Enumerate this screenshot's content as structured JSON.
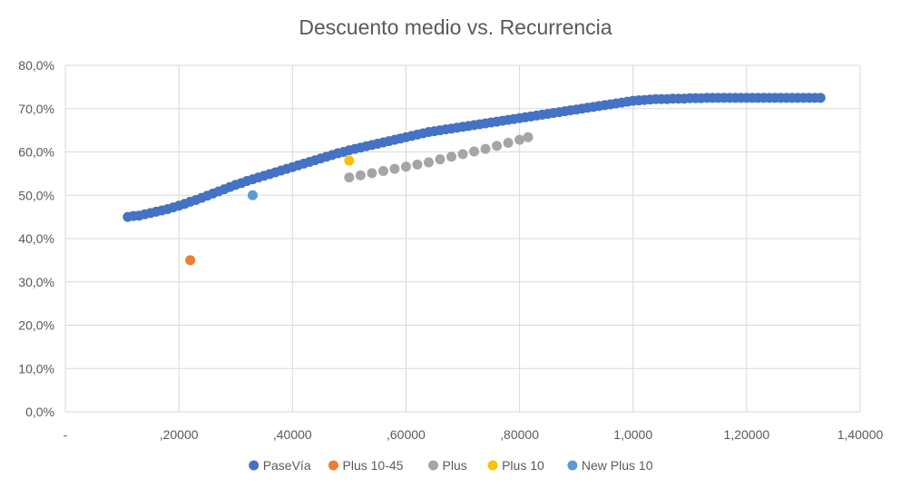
{
  "chart_data": {
    "type": "scatter",
    "title": "Descuento medio vs. Recurrencia",
    "xlabel": "",
    "ylabel": "",
    "xlim": [
      0,
      1.4
    ],
    "ylim": [
      0,
      0.8
    ],
    "x_ticks": [
      {
        "value": 0,
        "label": "-"
      },
      {
        "value": 0.2,
        "label": ",20000"
      },
      {
        "value": 0.4,
        "label": ",40000"
      },
      {
        "value": 0.6,
        "label": ",60000"
      },
      {
        "value": 0.8,
        "label": ",80000"
      },
      {
        "value": 1.0,
        "label": "1,0000"
      },
      {
        "value": 1.2,
        "label": "1,20000"
      },
      {
        "value": 1.4,
        "label": "1,40000"
      }
    ],
    "y_ticks": [
      {
        "value": 0.0,
        "label": "0,0%"
      },
      {
        "value": 0.1,
        "label": "10,0%"
      },
      {
        "value": 0.2,
        "label": "20,0%"
      },
      {
        "value": 0.3,
        "label": "30,0%"
      },
      {
        "value": 0.4,
        "label": "40,0%"
      },
      {
        "value": 0.5,
        "label": "50,0%"
      },
      {
        "value": 0.6,
        "label": "60,0%"
      },
      {
        "value": 0.7,
        "label": "70,0%"
      },
      {
        "value": 0.8,
        "label": "80,0%"
      }
    ],
    "grid": true,
    "legend_position": "bottom",
    "series": [
      {
        "name": "PaseVía",
        "color": "#4472C4",
        "points": [
          [
            0.11,
            0.45
          ],
          [
            0.12,
            0.452
          ],
          [
            0.13,
            0.453
          ],
          [
            0.14,
            0.456
          ],
          [
            0.15,
            0.459
          ],
          [
            0.16,
            0.462
          ],
          [
            0.17,
            0.465
          ],
          [
            0.18,
            0.468
          ],
          [
            0.19,
            0.472
          ],
          [
            0.2,
            0.476
          ],
          [
            0.21,
            0.48
          ],
          [
            0.22,
            0.485
          ],
          [
            0.23,
            0.489
          ],
          [
            0.24,
            0.494
          ],
          [
            0.25,
            0.499
          ],
          [
            0.26,
            0.504
          ],
          [
            0.27,
            0.509
          ],
          [
            0.28,
            0.514
          ],
          [
            0.29,
            0.519
          ],
          [
            0.3,
            0.524
          ],
          [
            0.31,
            0.528
          ],
          [
            0.32,
            0.533
          ],
          [
            0.33,
            0.537
          ],
          [
            0.34,
            0.541
          ],
          [
            0.35,
            0.545
          ],
          [
            0.36,
            0.549
          ],
          [
            0.37,
            0.553
          ],
          [
            0.38,
            0.557
          ],
          [
            0.39,
            0.561
          ],
          [
            0.4,
            0.565
          ],
          [
            0.41,
            0.569
          ],
          [
            0.42,
            0.573
          ],
          [
            0.43,
            0.577
          ],
          [
            0.44,
            0.581
          ],
          [
            0.45,
            0.585
          ],
          [
            0.46,
            0.589
          ],
          [
            0.47,
            0.593
          ],
          [
            0.48,
            0.597
          ],
          [
            0.49,
            0.6
          ],
          [
            0.5,
            0.604
          ],
          [
            0.51,
            0.607
          ],
          [
            0.52,
            0.61
          ],
          [
            0.53,
            0.613
          ],
          [
            0.54,
            0.616
          ],
          [
            0.55,
            0.619
          ],
          [
            0.56,
            0.622
          ],
          [
            0.57,
            0.625
          ],
          [
            0.58,
            0.628
          ],
          [
            0.59,
            0.631
          ],
          [
            0.6,
            0.634
          ],
          [
            0.61,
            0.637
          ],
          [
            0.62,
            0.64
          ],
          [
            0.63,
            0.643
          ],
          [
            0.64,
            0.646
          ],
          [
            0.65,
            0.648
          ],
          [
            0.66,
            0.65
          ],
          [
            0.67,
            0.652
          ],
          [
            0.68,
            0.654
          ],
          [
            0.69,
            0.656
          ],
          [
            0.7,
            0.658
          ],
          [
            0.71,
            0.66
          ],
          [
            0.72,
            0.662
          ],
          [
            0.73,
            0.664
          ],
          [
            0.74,
            0.666
          ],
          [
            0.75,
            0.668
          ],
          [
            0.76,
            0.67
          ],
          [
            0.77,
            0.672
          ],
          [
            0.78,
            0.674
          ],
          [
            0.79,
            0.676
          ],
          [
            0.8,
            0.678
          ],
          [
            0.81,
            0.68
          ],
          [
            0.82,
            0.682
          ],
          [
            0.83,
            0.684
          ],
          [
            0.84,
            0.686
          ],
          [
            0.85,
            0.688
          ],
          [
            0.86,
            0.69
          ],
          [
            0.87,
            0.692
          ],
          [
            0.88,
            0.694
          ],
          [
            0.89,
            0.696
          ],
          [
            0.9,
            0.698
          ],
          [
            0.91,
            0.7
          ],
          [
            0.92,
            0.702
          ],
          [
            0.93,
            0.704
          ],
          [
            0.94,
            0.706
          ],
          [
            0.95,
            0.708
          ],
          [
            0.96,
            0.71
          ],
          [
            0.97,
            0.712
          ],
          [
            0.98,
            0.714
          ],
          [
            0.99,
            0.716
          ],
          [
            1.0,
            0.718
          ],
          [
            1.01,
            0.719
          ],
          [
            1.02,
            0.72
          ],
          [
            1.03,
            0.721
          ],
          [
            1.04,
            0.722
          ],
          [
            1.05,
            0.722
          ],
          [
            1.06,
            0.722
          ],
          [
            1.07,
            0.723
          ],
          [
            1.08,
            0.723
          ],
          [
            1.09,
            0.723
          ],
          [
            1.1,
            0.724
          ],
          [
            1.11,
            0.724
          ],
          [
            1.12,
            0.724
          ],
          [
            1.13,
            0.725
          ],
          [
            1.14,
            0.725
          ],
          [
            1.15,
            0.725
          ],
          [
            1.16,
            0.725
          ],
          [
            1.17,
            0.725
          ],
          [
            1.18,
            0.725
          ],
          [
            1.19,
            0.725
          ],
          [
            1.2,
            0.725
          ],
          [
            1.21,
            0.725
          ],
          [
            1.22,
            0.725
          ],
          [
            1.23,
            0.725
          ],
          [
            1.24,
            0.725
          ],
          [
            1.25,
            0.725
          ],
          [
            1.26,
            0.725
          ],
          [
            1.27,
            0.725
          ],
          [
            1.28,
            0.725
          ],
          [
            1.29,
            0.725
          ],
          [
            1.3,
            0.725
          ],
          [
            1.31,
            0.725
          ],
          [
            1.32,
            0.725
          ],
          [
            1.33,
            0.725
          ]
        ]
      },
      {
        "name": "Plus 10-45",
        "color": "#ED7D31",
        "points": [
          [
            0.22,
            0.35
          ]
        ]
      },
      {
        "name": "Plus",
        "color": "#A5A5A5",
        "points": [
          [
            0.5,
            0.541
          ],
          [
            0.52,
            0.546
          ],
          [
            0.54,
            0.551
          ],
          [
            0.56,
            0.556
          ],
          [
            0.58,
            0.561
          ],
          [
            0.6,
            0.566
          ],
          [
            0.62,
            0.571
          ],
          [
            0.64,
            0.576
          ],
          [
            0.66,
            0.583
          ],
          [
            0.68,
            0.589
          ],
          [
            0.7,
            0.595
          ],
          [
            0.72,
            0.601
          ],
          [
            0.74,
            0.607
          ],
          [
            0.76,
            0.614
          ],
          [
            0.78,
            0.621
          ],
          [
            0.8,
            0.628
          ],
          [
            0.815,
            0.634
          ]
        ]
      },
      {
        "name": "Plus 10",
        "color": "#FFC000",
        "points": [
          [
            0.5,
            0.58
          ]
        ]
      },
      {
        "name": "New Plus 10",
        "color": "#5B9BD5",
        "points": [
          [
            0.33,
            0.5
          ]
        ]
      }
    ]
  }
}
